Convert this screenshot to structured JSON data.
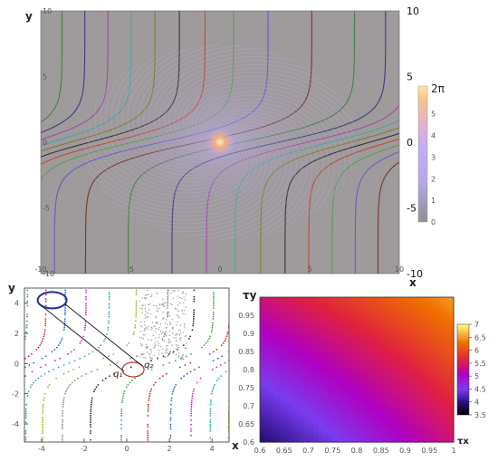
{
  "chart_data": [
    {
      "type": "line",
      "description_panel": "top",
      "xlabel": "x",
      "ylabel": "y",
      "xlim": [
        -10,
        10
      ],
      "ylim": [
        -10,
        10
      ],
      "x_ticks": [
        "-10",
        "-5",
        "0",
        "5",
        "10"
      ],
      "y_ticks": [
        "10",
        "5",
        "0",
        "-5",
        "-10"
      ],
      "right_axis_ticks": [
        "10",
        "5",
        "0",
        "-5",
        "-10"
      ],
      "colorbar": {
        "min": 0,
        "max": 6.283,
        "ticks": [
          "0",
          "1",
          "2",
          "3",
          "4",
          "5"
        ],
        "top_label": "2π",
        "colors": [
          "#8e8e8e",
          "#b7a9ea",
          "#c2aef4",
          "#e8b3c4",
          "#f6c38a",
          "#fde6a4"
        ]
      },
      "vortex_center": [
        0,
        0
      ],
      "curve_count": 22,
      "curve_colors": [
        "#6a2a1a",
        "#3b7a3b",
        "#2b2b7a",
        "#a03ea8",
        "#3aa7a7",
        "#7a7a1a",
        "#222222",
        "#c04020",
        "#4d9e4d",
        "#5555cc"
      ]
    },
    {
      "type": "scatter",
      "description_panel": "bottom-left",
      "xlabel": "x",
      "ylabel": "y",
      "xlim": [
        -4.8,
        4.8
      ],
      "ylim": [
        -5.2,
        5.0
      ],
      "x_ticks": [
        "-4",
        "-2",
        "0",
        "2",
        "4"
      ],
      "y_ticks": [
        "4",
        "2",
        "0",
        "-2",
        "-4"
      ],
      "annotations": [
        "q₁",
        "q₂"
      ],
      "ellipse_blue_center": [
        -3.5,
        4.2
      ],
      "ellipse_red_center": [
        0.3,
        -0.4
      ],
      "point_colors": [
        "#222222",
        "#3aa73a",
        "#cc2222",
        "#2b5bcc",
        "#cc22cc",
        "#22aaaa",
        "#aaaa22",
        "#888888"
      ]
    },
    {
      "type": "heatmap",
      "description_panel": "bottom-right",
      "xlabel": "τx",
      "ylabel": "τy",
      "xlim": [
        0.6,
        1.0
      ],
      "ylim": [
        0.6,
        1.0
      ],
      "x_ticks": [
        "0.6",
        "0.65",
        "0.7",
        "0.75",
        "0.8",
        "0.85",
        "0.9",
        "0.95",
        "1"
      ],
      "y_ticks": [
        "0.95",
        "0.9",
        "0.85",
        "0.8",
        "0.75",
        "0.7",
        "0.65",
        "0.6"
      ],
      "colorbar": {
        "min": 3.5,
        "max": 7,
        "ticks": [
          "7",
          "6.5",
          "6",
          "5.5",
          "5",
          "4.5",
          "4",
          "3.5"
        ],
        "colors": [
          "#000000",
          "#2a1080",
          "#7a3cf0",
          "#b000c0",
          "#e02040",
          "#f07000",
          "#ffff80"
        ]
      },
      "corner_values": {
        "bottom_left": 4.0,
        "bottom_right": 5.6,
        "top_left": 5.6,
        "top_right": 6.6
      }
    }
  ]
}
